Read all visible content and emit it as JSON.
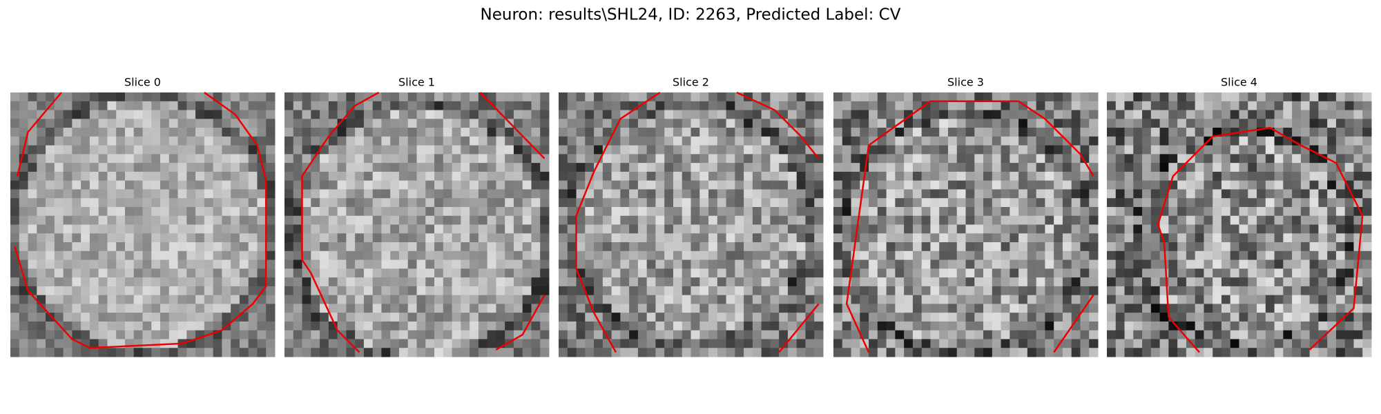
{
  "header": {
    "title": "Neuron: results\\SHL24, ID: 2263, Predicted Label: CV"
  },
  "panels": [
    {
      "title": "Slice 0"
    },
    {
      "title": "Slice 1"
    },
    {
      "title": "Slice 2"
    },
    {
      "title": "Slice 3"
    },
    {
      "title": "Slice 4"
    }
  ]
}
